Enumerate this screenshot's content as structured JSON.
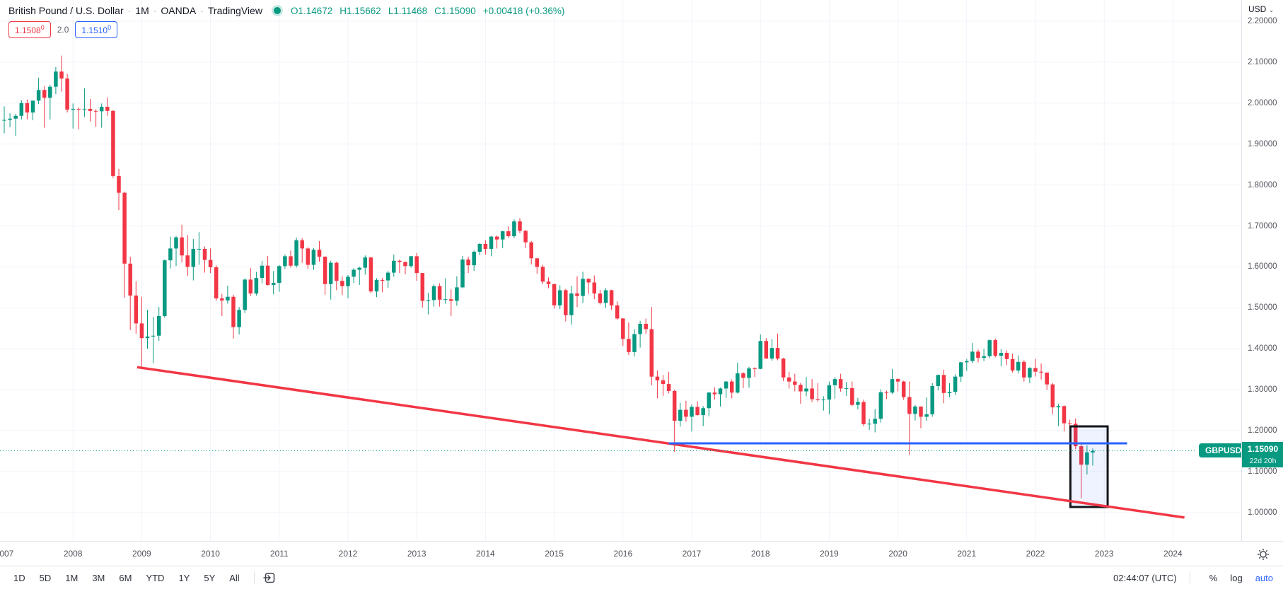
{
  "header": {
    "symbol_title": "British Pound / U.S. Dollar",
    "separator": "·",
    "interval": "1M",
    "exchange": "OANDA",
    "platform": "TradingView",
    "ohlc": {
      "o_label": "O",
      "o": "1.14672",
      "h_label": "H",
      "h": "1.15662",
      "l_label": "L",
      "l": "1.11468",
      "c_label": "C",
      "c": "1.15090",
      "change": "+0.00418",
      "change_pct": "(+0.36%)"
    },
    "orders": {
      "sell_price": "1.1508",
      "sell_sup": "0",
      "quantity": "2.0",
      "buy_price": "1.1510",
      "buy_sup": "0"
    }
  },
  "price_axis": {
    "currency_label": "USD",
    "caret": "⌄",
    "ticks": [
      "2.20000",
      "2.10000",
      "2.00000",
      "1.90000",
      "1.80000",
      "1.70000",
      "1.60000",
      "1.50000",
      "1.40000",
      "1.30000",
      "1.20000",
      "1.10000",
      "1.00000"
    ],
    "price_label": {
      "symbol": "GBPUSD",
      "price": "1.15090",
      "countdown": "22d 20h"
    }
  },
  "time_axis": {
    "years": [
      "2007",
      "2008",
      "2009",
      "2010",
      "2011",
      "2012",
      "2013",
      "2014",
      "2015",
      "2016",
      "2017",
      "2018",
      "2019",
      "2020",
      "2021",
      "2022",
      "2023",
      "2024"
    ]
  },
  "toolbar": {
    "ranges": [
      "1D",
      "5D",
      "1M",
      "3M",
      "6M",
      "YTD",
      "1Y",
      "5Y",
      "All"
    ],
    "time": "02:44:07 (UTC)",
    "percent_label": "%",
    "log_label": "log",
    "auto_label": "auto"
  },
  "colors": {
    "up": "#089981",
    "down": "#F23645",
    "accent_blue": "#2962FF",
    "trendline_red": "#F23645",
    "grid": "#f0f3fa",
    "label_teal": "#089981"
  },
  "chart_data": {
    "type": "candlestick",
    "symbol": "GBPUSD",
    "interval": "monthly",
    "start": "2007-01",
    "x_visible_range": [
      "2007-01",
      "2024-12"
    ],
    "ylim": [
      0.931,
      2.252
    ],
    "grid": true,
    "candles_format": [
      "open",
      "high",
      "low",
      "close"
    ],
    "candles": [
      [
        1.958,
        1.992,
        1.926,
        1.959
      ],
      [
        1.959,
        1.975,
        1.941,
        1.962
      ],
      [
        1.962,
        1.974,
        1.92,
        1.969
      ],
      [
        1.969,
        2.007,
        1.96,
        2.0
      ],
      [
        2.0,
        2.009,
        1.96,
        1.977
      ],
      [
        1.977,
        2.006,
        1.958,
        2.006
      ],
      [
        2.006,
        2.062,
        1.998,
        2.032
      ],
      [
        2.032,
        2.042,
        1.94,
        2.013
      ],
      [
        2.013,
        2.045,
        1.96,
        2.04
      ],
      [
        2.04,
        2.088,
        2.022,
        2.077
      ],
      [
        2.077,
        2.116,
        2.028,
        2.06
      ],
      [
        2.06,
        2.071,
        1.977,
        1.984
      ],
      [
        1.984,
        1.999,
        1.938,
        1.986
      ],
      [
        1.986,
        1.989,
        1.936,
        1.985
      ],
      [
        1.985,
        2.036,
        1.966,
        1.986
      ],
      [
        1.986,
        2.01,
        1.955,
        1.981
      ],
      [
        1.981,
        1.985,
        1.942,
        1.98
      ],
      [
        1.98,
        1.999,
        1.94,
        1.991
      ],
      [
        1.991,
        2.014,
        1.969,
        1.981
      ],
      [
        1.981,
        1.983,
        1.817,
        1.822
      ],
      [
        1.822,
        1.839,
        1.739,
        1.781
      ],
      [
        1.781,
        1.784,
        1.525,
        1.608
      ],
      [
        1.608,
        1.625,
        1.446,
        1.53
      ],
      [
        1.53,
        1.565,
        1.437,
        1.462
      ],
      [
        1.462,
        1.527,
        1.35,
        1.426
      ],
      [
        1.426,
        1.495,
        1.4,
        1.43
      ],
      [
        1.43,
        1.478,
        1.365,
        1.432
      ],
      [
        1.432,
        1.502,
        1.419,
        1.48
      ],
      [
        1.48,
        1.618,
        1.476,
        1.616
      ],
      [
        1.616,
        1.674,
        1.596,
        1.645
      ],
      [
        1.645,
        1.675,
        1.602,
        1.672
      ],
      [
        1.672,
        1.703,
        1.611,
        1.628
      ],
      [
        1.628,
        1.678,
        1.578,
        1.6
      ],
      [
        1.6,
        1.668,
        1.567,
        1.644
      ],
      [
        1.644,
        1.685,
        1.605,
        1.644
      ],
      [
        1.644,
        1.65,
        1.586,
        1.617
      ],
      [
        1.617,
        1.645,
        1.585,
        1.599
      ],
      [
        1.599,
        1.604,
        1.517,
        1.523
      ],
      [
        1.523,
        1.534,
        1.48,
        1.518
      ],
      [
        1.518,
        1.554,
        1.51,
        1.527
      ],
      [
        1.527,
        1.532,
        1.425,
        1.453
      ],
      [
        1.453,
        1.502,
        1.435,
        1.495
      ],
      [
        1.495,
        1.572,
        1.487,
        1.569
      ],
      [
        1.569,
        1.597,
        1.529,
        1.535
      ],
      [
        1.535,
        1.588,
        1.53,
        1.573
      ],
      [
        1.573,
        1.615,
        1.56,
        1.603
      ],
      [
        1.603,
        1.627,
        1.554,
        1.556
      ],
      [
        1.556,
        1.59,
        1.533,
        1.561
      ],
      [
        1.561,
        1.605,
        1.539,
        1.602
      ],
      [
        1.602,
        1.63,
        1.595,
        1.626
      ],
      [
        1.626,
        1.64,
        1.598,
        1.603
      ],
      [
        1.603,
        1.672,
        1.598,
        1.665
      ],
      [
        1.665,
        1.67,
        1.61,
        1.645
      ],
      [
        1.645,
        1.648,
        1.595,
        1.605
      ],
      [
        1.605,
        1.646,
        1.593,
        1.642
      ],
      [
        1.642,
        1.663,
        1.613,
        1.625
      ],
      [
        1.625,
        1.626,
        1.532,
        1.558
      ],
      [
        1.558,
        1.615,
        1.52,
        1.61
      ],
      [
        1.61,
        1.613,
        1.543,
        1.566
      ],
      [
        1.566,
        1.577,
        1.531,
        1.553
      ],
      [
        1.553,
        1.58,
        1.524,
        1.576
      ],
      [
        1.576,
        1.597,
        1.561,
        1.593
      ],
      [
        1.593,
        1.6,
        1.556,
        1.598
      ],
      [
        1.598,
        1.628,
        1.581,
        1.623
      ],
      [
        1.623,
        1.625,
        1.536,
        1.54
      ],
      [
        1.54,
        1.572,
        1.526,
        1.568
      ],
      [
        1.568,
        1.573,
        1.538,
        1.567
      ],
      [
        1.567,
        1.59,
        1.549,
        1.586
      ],
      [
        1.586,
        1.63,
        1.576,
        1.615
      ],
      [
        1.615,
        1.618,
        1.585,
        1.612
      ],
      [
        1.612,
        1.613,
        1.582,
        1.602
      ],
      [
        1.602,
        1.627,
        1.598,
        1.626
      ],
      [
        1.626,
        1.634,
        1.566,
        1.585
      ],
      [
        1.585,
        1.585,
        1.501,
        1.517
      ],
      [
        1.517,
        1.537,
        1.484,
        1.519
      ],
      [
        1.519,
        1.557,
        1.503,
        1.553
      ],
      [
        1.553,
        1.56,
        1.503,
        1.52
      ],
      [
        1.52,
        1.572,
        1.51,
        1.521
      ],
      [
        1.521,
        1.545,
        1.48,
        1.517
      ],
      [
        1.517,
        1.577,
        1.505,
        1.55
      ],
      [
        1.55,
        1.627,
        1.548,
        1.618
      ],
      [
        1.618,
        1.625,
        1.585,
        1.604
      ],
      [
        1.604,
        1.64,
        1.59,
        1.637
      ],
      [
        1.637,
        1.658,
        1.629,
        1.656
      ],
      [
        1.656,
        1.665,
        1.63,
        1.644
      ],
      [
        1.644,
        1.675,
        1.626,
        1.674
      ],
      [
        1.674,
        1.677,
        1.645,
        1.667
      ],
      [
        1.667,
        1.688,
        1.646,
        1.687
      ],
      [
        1.687,
        1.699,
        1.671,
        1.675
      ],
      [
        1.675,
        1.716,
        1.67,
        1.711
      ],
      [
        1.711,
        1.719,
        1.682,
        1.688
      ],
      [
        1.688,
        1.69,
        1.646,
        1.66
      ],
      [
        1.66,
        1.663,
        1.606,
        1.621
      ],
      [
        1.621,
        1.621,
        1.583,
        1.6
      ],
      [
        1.6,
        1.605,
        1.558,
        1.564
      ],
      [
        1.564,
        1.574,
        1.548,
        1.558
      ],
      [
        1.558,
        1.559,
        1.498,
        1.506
      ],
      [
        1.506,
        1.555,
        1.497,
        1.543
      ],
      [
        1.543,
        1.546,
        1.467,
        1.482
      ],
      [
        1.482,
        1.554,
        1.459,
        1.535
      ],
      [
        1.535,
        1.577,
        1.502,
        1.529
      ],
      [
        1.529,
        1.588,
        1.512,
        1.571
      ],
      [
        1.571,
        1.572,
        1.534,
        1.562
      ],
      [
        1.562,
        1.579,
        1.521,
        1.535
      ],
      [
        1.535,
        1.544,
        1.508,
        1.512
      ],
      [
        1.512,
        1.548,
        1.5,
        1.543
      ],
      [
        1.543,
        1.544,
        1.495,
        1.506
      ],
      [
        1.506,
        1.516,
        1.47,
        1.474
      ],
      [
        1.474,
        1.475,
        1.407,
        1.424
      ],
      [
        1.424,
        1.464,
        1.385,
        1.392
      ],
      [
        1.392,
        1.448,
        1.381,
        1.436
      ],
      [
        1.436,
        1.468,
        1.403,
        1.461
      ],
      [
        1.461,
        1.474,
        1.436,
        1.448
      ],
      [
        1.448,
        1.502,
        1.311,
        1.332
      ],
      [
        1.332,
        1.347,
        1.279,
        1.323
      ],
      [
        1.323,
        1.336,
        1.285,
        1.314
      ],
      [
        1.314,
        1.344,
        1.291,
        1.297
      ],
      [
        1.297,
        1.3,
        1.148,
        1.224
      ],
      [
        1.224,
        1.268,
        1.21,
        1.251
      ],
      [
        1.251,
        1.273,
        1.222,
        1.234
      ],
      [
        1.234,
        1.264,
        1.198,
        1.258
      ],
      [
        1.258,
        1.272,
        1.237,
        1.238
      ],
      [
        1.238,
        1.26,
        1.211,
        1.255
      ],
      [
        1.255,
        1.295,
        1.235,
        1.293
      ],
      [
        1.293,
        1.306,
        1.276,
        1.289
      ],
      [
        1.289,
        1.305,
        1.259,
        1.303
      ],
      [
        1.303,
        1.321,
        1.28,
        1.32
      ],
      [
        1.32,
        1.325,
        1.279,
        1.293
      ],
      [
        1.293,
        1.366,
        1.291,
        1.34
      ],
      [
        1.34,
        1.343,
        1.304,
        1.329
      ],
      [
        1.329,
        1.356,
        1.305,
        1.352
      ],
      [
        1.352,
        1.355,
        1.331,
        1.351
      ],
      [
        1.351,
        1.435,
        1.35,
        1.419
      ],
      [
        1.419,
        1.426,
        1.376,
        1.376
      ],
      [
        1.376,
        1.424,
        1.371,
        1.402
      ],
      [
        1.402,
        1.437,
        1.372,
        1.376
      ],
      [
        1.376,
        1.378,
        1.321,
        1.33
      ],
      [
        1.33,
        1.344,
        1.303,
        1.32
      ],
      [
        1.32,
        1.339,
        1.296,
        1.312
      ],
      [
        1.312,
        1.317,
        1.266,
        1.296
      ],
      [
        1.296,
        1.331,
        1.284,
        1.303
      ],
      [
        1.303,
        1.326,
        1.27,
        1.277
      ],
      [
        1.277,
        1.316,
        1.271,
        1.275
      ],
      [
        1.275,
        1.284,
        1.249,
        1.276
      ],
      [
        1.276,
        1.32,
        1.24,
        1.311
      ],
      [
        1.311,
        1.331,
        1.278,
        1.326
      ],
      [
        1.326,
        1.339,
        1.295,
        1.303
      ],
      [
        1.303,
        1.319,
        1.285,
        1.304
      ],
      [
        1.304,
        1.32,
        1.26,
        1.263
      ],
      [
        1.263,
        1.28,
        1.252,
        1.27
      ],
      [
        1.27,
        1.276,
        1.211,
        1.216
      ],
      [
        1.216,
        1.229,
        1.202,
        1.217
      ],
      [
        1.217,
        1.253,
        1.196,
        1.229
      ],
      [
        1.229,
        1.301,
        1.22,
        1.294
      ],
      [
        1.294,
        1.298,
        1.277,
        1.293
      ],
      [
        1.293,
        1.351,
        1.289,
        1.326
      ],
      [
        1.326,
        1.328,
        1.296,
        1.32
      ],
      [
        1.32,
        1.322,
        1.275,
        1.282
      ],
      [
        1.282,
        1.32,
        1.141,
        1.241
      ],
      [
        1.241,
        1.263,
        1.225,
        1.259
      ],
      [
        1.259,
        1.259,
        1.206,
        1.234
      ],
      [
        1.234,
        1.281,
        1.224,
        1.24
      ],
      [
        1.24,
        1.316,
        1.234,
        1.309
      ],
      [
        1.309,
        1.337,
        1.298,
        1.336
      ],
      [
        1.336,
        1.349,
        1.267,
        1.292
      ],
      [
        1.292,
        1.316,
        1.282,
        1.295
      ],
      [
        1.295,
        1.338,
        1.287,
        1.332
      ],
      [
        1.332,
        1.368,
        1.319,
        1.367
      ],
      [
        1.367,
        1.375,
        1.346,
        1.37
      ],
      [
        1.37,
        1.414,
        1.365,
        1.393
      ],
      [
        1.393,
        1.398,
        1.367,
        1.378
      ],
      [
        1.378,
        1.4,
        1.37,
        1.382
      ],
      [
        1.382,
        1.423,
        1.377,
        1.421
      ],
      [
        1.421,
        1.425,
        1.379,
        1.383
      ],
      [
        1.383,
        1.399,
        1.357,
        1.39
      ],
      [
        1.39,
        1.396,
        1.36,
        1.375
      ],
      [
        1.375,
        1.388,
        1.342,
        1.347
      ],
      [
        1.347,
        1.384,
        1.34,
        1.368
      ],
      [
        1.368,
        1.372,
        1.32,
        1.33
      ],
      [
        1.33,
        1.355,
        1.316,
        1.353
      ],
      [
        1.353,
        1.375,
        1.332,
        1.344
      ],
      [
        1.344,
        1.364,
        1.325,
        1.342
      ],
      [
        1.342,
        1.342,
        1.3,
        1.313
      ],
      [
        1.313,
        1.316,
        1.24,
        1.257
      ],
      [
        1.257,
        1.266,
        1.211,
        1.26
      ],
      [
        1.26,
        1.262,
        1.198,
        1.218
      ],
      [
        1.218,
        1.227,
        1.175,
        1.217
      ],
      [
        1.217,
        1.23,
        1.155,
        1.162
      ],
      [
        1.162,
        1.172,
        1.035,
        1.117
      ],
      [
        1.117,
        1.164,
        1.093,
        1.147
      ],
      [
        1.14672,
        1.15662,
        1.11468,
        1.1509
      ]
    ],
    "overlays": {
      "trendline": {
        "type": "trendline",
        "color": "#F23645",
        "width": 3.5,
        "from": {
          "month_index": 23.2,
          "price": 1.355
        },
        "to": {
          "month_index": 206,
          "price": 0.988
        }
      },
      "resistance_line": {
        "type": "horizontal_segment",
        "color": "#2962FF",
        "width": 3,
        "price": 1.169,
        "from_month_index": 116,
        "to_month_index": 196
      },
      "current_price_line": {
        "type": "price_line",
        "style": "dotted",
        "color": "#089981",
        "price": 1.1509
      },
      "highlight_box": {
        "type": "rectangle",
        "border_color": "#14151a",
        "border_width": 3,
        "fill": "rgba(41,98,255,0.08)",
        "from_month_index": 186.1,
        "to_month_index": 192.6,
        "top_price": 1.2105,
        "bottom_price": 1.0136
      }
    }
  }
}
